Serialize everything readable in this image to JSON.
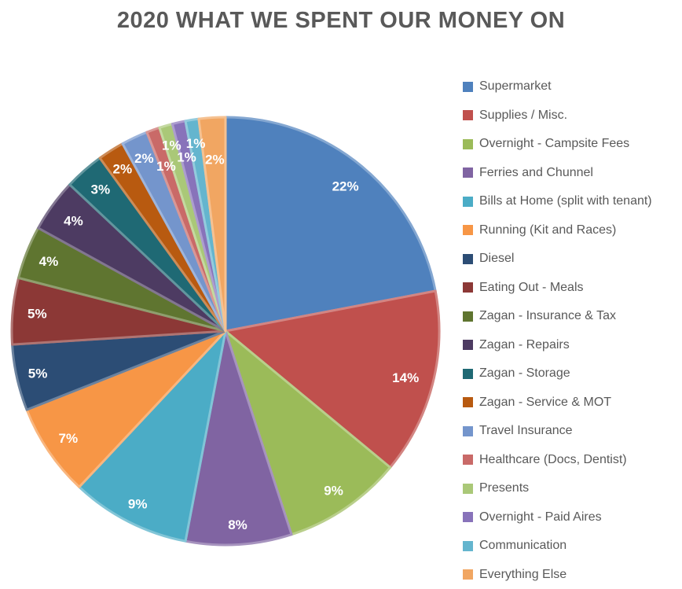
{
  "page": {
    "background": "#FFFFFF"
  },
  "chart_data": {
    "type": "pie",
    "title": "2020 WHAT WE SPENT OUR MONEY ON",
    "title_color": "#595959",
    "text_color": "#595959",
    "data_label_color": "#FFFFFF",
    "legend_position": "right",
    "start_angle_deg": 0,
    "direction": "clockwise",
    "label_format": "percent",
    "slices": [
      {
        "label": "Supermarket",
        "value": 22,
        "pct_label": "22%",
        "color": "#4F81BD",
        "label_r": 0.88
      },
      {
        "label": "Supplies / Misc.",
        "value": 14,
        "pct_label": "14%",
        "color": "#C0504D",
        "label_r": 0.87
      },
      {
        "label": "Overnight - Campsite Fees",
        "value": 9,
        "pct_label": "9%",
        "color": "#9BBB59",
        "label_r": 0.9
      },
      {
        "label": "Ferries and Chunnel",
        "value": 8,
        "pct_label": "8%",
        "color": "#8064A2",
        "label_r": 0.905
      },
      {
        "label": "Bills at Home (split with tenant)",
        "value": 9,
        "pct_label": "9%",
        "color": "#4BACC6",
        "label_r": 0.905
      },
      {
        "label": "Running (Kit and Races)",
        "value": 7,
        "pct_label": "7%",
        "color": "#F79646",
        "label_r": 0.89
      },
      {
        "label": "Diesel",
        "value": 5,
        "pct_label": "5%",
        "color": "#2C4D75",
        "label_r": 0.9
      },
      {
        "label": "Eating Out - Meals",
        "value": 5,
        "pct_label": "5%",
        "color": "#8C3836",
        "label_r": 0.885
      },
      {
        "label": "Zagan - Insurance & Tax",
        "value": 4,
        "pct_label": "4%",
        "color": "#5F7530",
        "label_r": 0.89
      },
      {
        "label": "Zagan - Repairs",
        "value": 4,
        "pct_label": "4%",
        "color": "#4D3B62",
        "label_r": 0.88
      },
      {
        "label": "Zagan - Storage",
        "value": 3,
        "pct_label": "3%",
        "color": "#1F6974",
        "label_r": 0.885
      },
      {
        "label": "Zagan - Service & MOT",
        "value": 2,
        "pct_label": "2%",
        "color": "#B85A10",
        "label_r": 0.9
      },
      {
        "label": "Travel Insurance",
        "value": 2,
        "pct_label": "2%",
        "color": "#7495CC",
        "label_r": 0.895
      },
      {
        "label": "Healthcare (Docs, Dentist)",
        "value": 1,
        "pct_label": "1%",
        "color": "#C96A68",
        "label_r": 0.82
      },
      {
        "label": "Presents",
        "value": 1,
        "pct_label": "1%",
        "color": "#AAC878",
        "label_r": 0.905
      },
      {
        "label": "Overnight - Paid Aires",
        "value": 1,
        "pct_label": "1%",
        "color": "#8873BA",
        "label_r": 0.835
      },
      {
        "label": "Communication",
        "value": 1,
        "pct_label": "1%",
        "color": "#64B5CE",
        "label_r": 0.89
      },
      {
        "label": "Everything Else",
        "value": 2,
        "pct_label": "2%",
        "color": "#F1A662",
        "label_r": 0.805
      }
    ]
  }
}
